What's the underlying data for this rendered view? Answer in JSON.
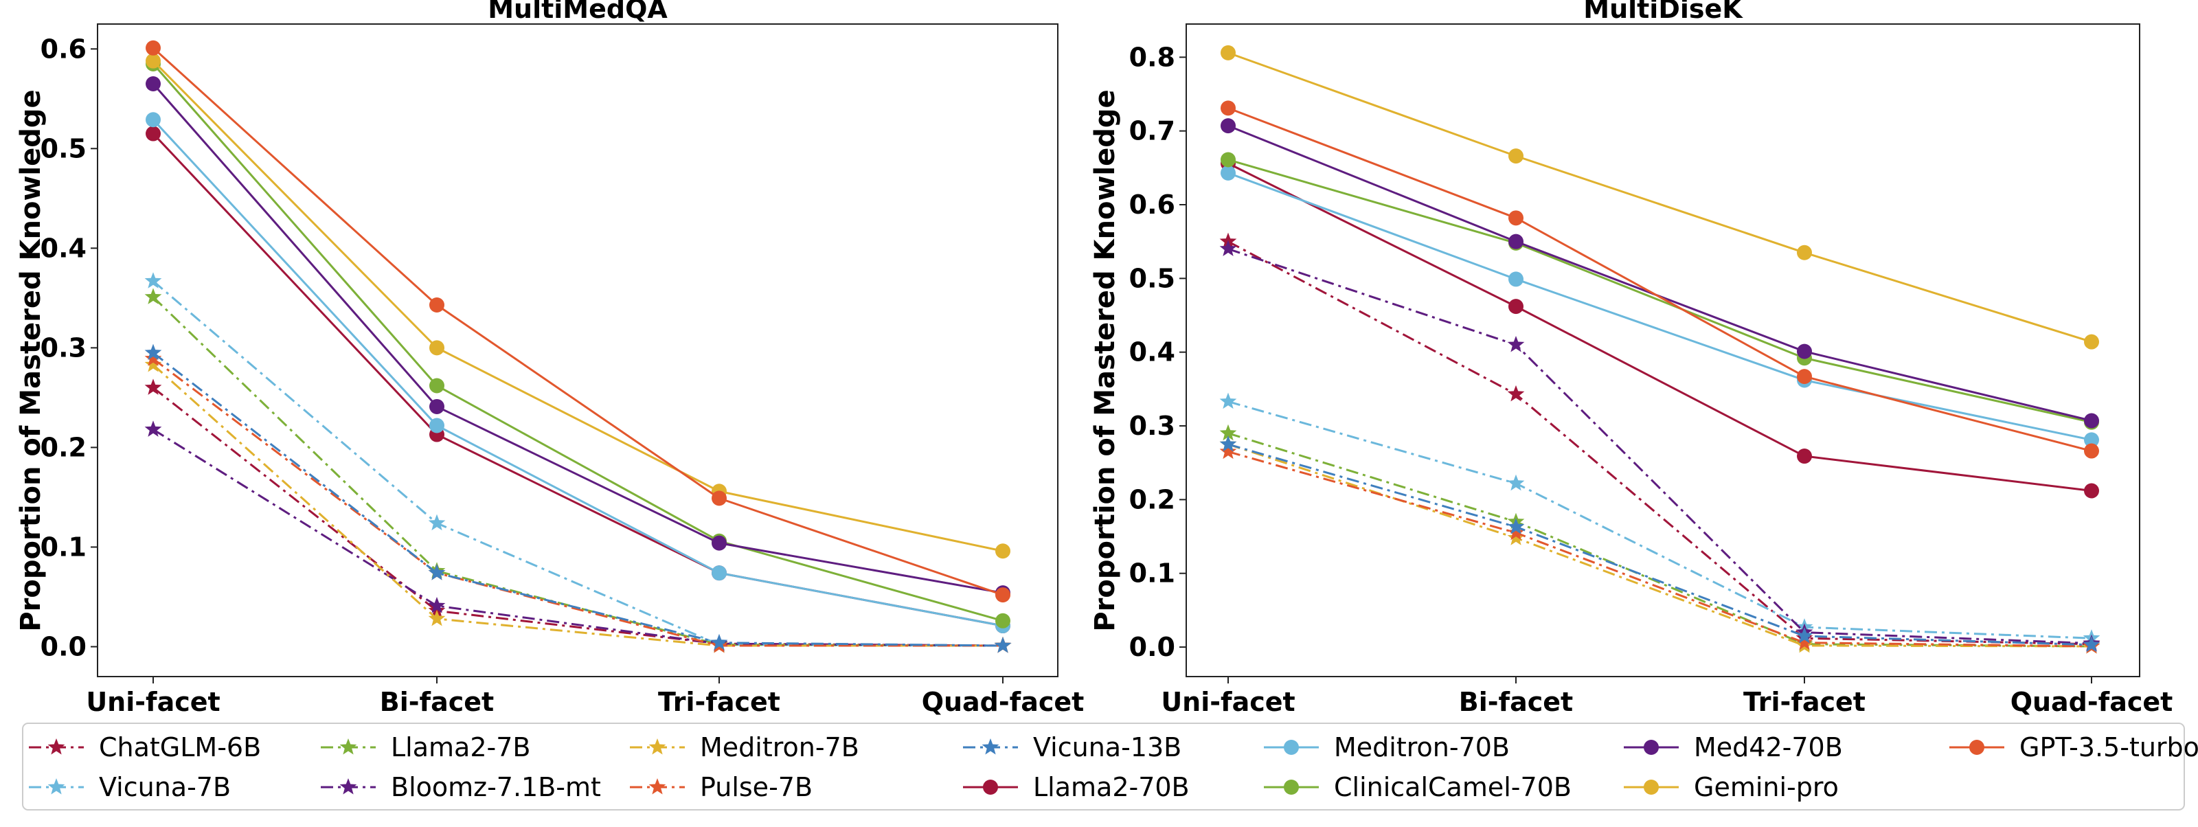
{
  "chart_data": [
    {
      "type": "line",
      "title": "MultiMedQA",
      "xlabel": "",
      "ylabel": "Proportion of Mastered Knowledge",
      "categories": [
        "Uni-facet",
        "Bi-facet",
        "Tri-facet",
        "Quad-facet"
      ],
      "ylim": [
        -0.03,
        0.625
      ],
      "yticks": [
        "0.0",
        "0.1",
        "0.2",
        "0.3",
        "0.4",
        "0.5",
        "0.6"
      ],
      "grid": false,
      "series": [
        {
          "name": "ChatGLM-6B",
          "values": [
            0.26,
            0.036,
            0.003,
            0.001
          ]
        },
        {
          "name": "Vicuna-7B",
          "values": [
            0.367,
            0.124,
            0.002,
            0.001
          ]
        },
        {
          "name": "Llama2-7B",
          "values": [
            0.351,
            0.076,
            0.002,
            0.001
          ]
        },
        {
          "name": "Bloomz-7.1B-mt",
          "values": [
            0.218,
            0.041,
            0.003,
            0.001
          ]
        },
        {
          "name": "Meditron-7B",
          "values": [
            0.283,
            0.028,
            0.001,
            0.001
          ]
        },
        {
          "name": "Pulse-7B",
          "values": [
            0.289,
            0.074,
            0.001,
            0.001
          ]
        },
        {
          "name": "Vicuna-13B",
          "values": [
            0.295,
            0.074,
            0.004,
            0.001
          ]
        },
        {
          "name": "Llama2-70B",
          "values": [
            0.515,
            0.213,
            0.074,
            0.021
          ]
        },
        {
          "name": "Meditron-70B",
          "values": [
            0.529,
            0.222,
            0.074,
            0.021
          ]
        },
        {
          "name": "ClinicalCamel-70B",
          "values": [
            0.585,
            0.262,
            0.106,
            0.026
          ]
        },
        {
          "name": "Med42-70B",
          "values": [
            0.565,
            0.241,
            0.104,
            0.054
          ]
        },
        {
          "name": "Gemini-pro",
          "values": [
            0.588,
            0.3,
            0.156,
            0.096
          ]
        },
        {
          "name": "GPT-3.5-turbo",
          "values": [
            0.601,
            0.343,
            0.149,
            0.052
          ]
        }
      ]
    },
    {
      "type": "line",
      "title": "MultiDiseK",
      "xlabel": "",
      "ylabel": "Proportion of Mastered Knowledge",
      "categories": [
        "Uni-facet",
        "Bi-facet",
        "Tri-facet",
        "Quad-facet"
      ],
      "ylim": [
        -0.04,
        0.845
      ],
      "yticks": [
        "0.0",
        "0.1",
        "0.2",
        "0.3",
        "0.4",
        "0.5",
        "0.6",
        "0.7",
        "0.8"
      ],
      "grid": false,
      "series": [
        {
          "name": "ChatGLM-6B",
          "values": [
            0.55,
            0.343,
            0.012,
            0.004
          ]
        },
        {
          "name": "Vicuna-7B",
          "values": [
            0.333,
            0.222,
            0.027,
            0.012
          ]
        },
        {
          "name": "Llama2-7B",
          "values": [
            0.29,
            0.17,
            0.004,
            0.001
          ]
        },
        {
          "name": "Bloomz-7.1B-mt",
          "values": [
            0.54,
            0.41,
            0.02,
            0.005
          ]
        },
        {
          "name": "Meditron-7B",
          "values": [
            0.275,
            0.148,
            0.002,
            0.001
          ]
        },
        {
          "name": "Pulse-7B",
          "values": [
            0.265,
            0.155,
            0.006,
            0.001
          ]
        },
        {
          "name": "Vicuna-13B",
          "values": [
            0.275,
            0.163,
            0.015,
            0.003
          ]
        },
        {
          "name": "Llama2-70B",
          "values": [
            0.656,
            0.462,
            0.259,
            0.212
          ]
        },
        {
          "name": "Meditron-70B",
          "values": [
            0.643,
            0.499,
            0.362,
            0.281
          ]
        },
        {
          "name": "ClinicalCamel-70B",
          "values": [
            0.661,
            0.548,
            0.392,
            0.305
          ]
        },
        {
          "name": "Med42-70B",
          "values": [
            0.707,
            0.55,
            0.401,
            0.307
          ]
        },
        {
          "name": "Gemini-pro",
          "values": [
            0.806,
            0.666,
            0.535,
            0.414
          ]
        },
        {
          "name": "GPT-3.5-turbo",
          "values": [
            0.731,
            0.582,
            0.367,
            0.266
          ]
        }
      ]
    }
  ],
  "legend": {
    "placement": "bottom",
    "items": [
      {
        "name": "ChatGLM-6B",
        "color": "#a1153a",
        "style": "dashdot",
        "marker": "star"
      },
      {
        "name": "Vicuna-7B",
        "color": "#6bb8dc",
        "style": "dashdot",
        "marker": "star"
      },
      {
        "name": "Llama2-7B",
        "color": "#7db038",
        "style": "dashdot",
        "marker": "star"
      },
      {
        "name": "Bloomz-7.1B-mt",
        "color": "#5e1d80",
        "style": "dashdot",
        "marker": "star"
      },
      {
        "name": "Meditron-7B",
        "color": "#e0b12e",
        "style": "dashdot",
        "marker": "star"
      },
      {
        "name": "Pulse-7B",
        "color": "#e2572d",
        "style": "dashdot",
        "marker": "star"
      },
      {
        "name": "Vicuna-13B",
        "color": "#3f7fbe",
        "style": "dashdot",
        "marker": "star"
      },
      {
        "name": "Llama2-70B",
        "color": "#a1153a",
        "style": "solid",
        "marker": "circle"
      },
      {
        "name": "Meditron-70B",
        "color": "#6bb8dc",
        "style": "solid",
        "marker": "circle"
      },
      {
        "name": "ClinicalCamel-70B",
        "color": "#7db038",
        "style": "solid",
        "marker": "circle"
      },
      {
        "name": "Med42-70B",
        "color": "#5e1d80",
        "style": "solid",
        "marker": "circle"
      },
      {
        "name": "Gemini-pro",
        "color": "#e0b12e",
        "style": "solid",
        "marker": "circle"
      },
      {
        "name": "GPT-3.5-turbo",
        "color": "#e2572d",
        "style": "solid",
        "marker": "circle"
      }
    ]
  }
}
